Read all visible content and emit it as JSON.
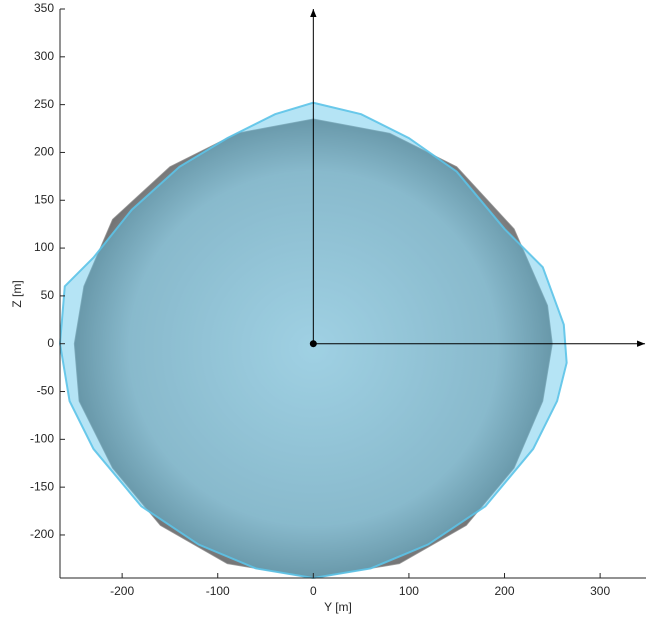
{
  "chart_data": {
    "type": "shape",
    "x_label": "Y [m]",
    "y_label": "Z [m]",
    "xlim": [
      -265,
      348
    ],
    "ylim": [
      -245,
      350
    ],
    "xticks": [
      -200,
      -100,
      0,
      100,
      200,
      300
    ],
    "yticks": [
      -200,
      -150,
      -100,
      -50,
      0,
      50,
      100,
      150,
      200,
      250,
      300,
      350
    ],
    "shapes": [
      {
        "color": "#8c8c8c",
        "x": [
          0,
          80,
          150,
          210,
          245,
          250,
          240,
          210,
          160,
          90,
          0,
          -90,
          -160,
          -210,
          -245,
          -250,
          -240,
          -210,
          -150,
          -80
        ],
        "values": [
          235,
          220,
          185,
          120,
          40,
          0,
          -60,
          -130,
          -190,
          -230,
          -245,
          -230,
          -190,
          -130,
          -60,
          0,
          60,
          130,
          185,
          220
        ]
      },
      {
        "color": "#5cc3e8",
        "x": [
          0,
          50,
          100,
          150,
          200,
          240,
          262,
          265,
          255,
          230,
          180,
          120,
          60,
          0,
          -60,
          -120,
          -180,
          -230,
          -255,
          -265,
          -260,
          -230,
          -190,
          -140,
          -90,
          -40
        ],
        "values": [
          252,
          240,
          215,
          180,
          120,
          80,
          20,
          -20,
          -60,
          -110,
          -170,
          -210,
          -235,
          -245,
          -235,
          -210,
          -170,
          -110,
          -60,
          0,
          60,
          90,
          140,
          185,
          215,
          240
        ]
      }
    ],
    "arrows": [
      {
        "color": "#000000",
        "x": [
          0,
          347
        ],
        "values": [
          0,
          0
        ]
      },
      {
        "color": "#000000",
        "x": [
          0,
          0
        ],
        "values": [
          0,
          350
        ]
      }
    ]
  }
}
